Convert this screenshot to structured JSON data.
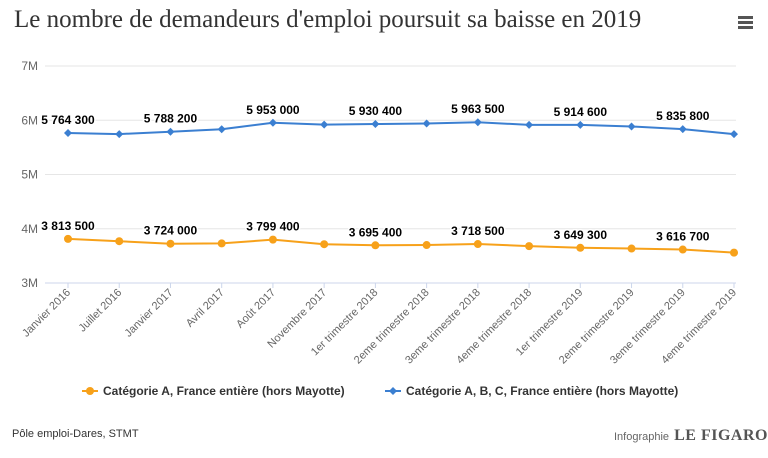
{
  "header": {
    "title": "Le nombre de demandeurs d'emploi poursuit sa baisse en 2019",
    "menu_icon": "hamburger-menu-icon"
  },
  "footer": {
    "source": "Pôle emploi-Dares, STMT",
    "infographie_label": "Infographie",
    "brand": "LE FIGARO"
  },
  "chart_data": {
    "type": "line",
    "title": "Le nombre de demandeurs d'emploi poursuit sa baisse en 2019",
    "xlabel": "",
    "ylabel": "",
    "ylim": [
      3000000,
      7000000
    ],
    "yticks": [
      3000000,
      4000000,
      5000000,
      6000000,
      7000000
    ],
    "ytick_labels": [
      "3M",
      "4M",
      "5M",
      "6M",
      "7M"
    ],
    "grid": true,
    "legend_position": "bottom",
    "categories": [
      "Janvier 2016",
      "Juillet 2016",
      "Janvier 2017",
      "Avril 2017",
      "Août 2017",
      "Novembre 2017",
      "1er trimestre 2018",
      "2eme trimestre 2018",
      "3eme trimestre 2018",
      "4eme trimestre 2018",
      "1er trimestre 2019",
      "2eme trimestre 2019",
      "3eme trimestre 2019",
      "4eme trimestre 2019"
    ],
    "series": [
      {
        "name": "Catégorie A, France entière (hors Mayotte)",
        "color": "#f7a11a",
        "marker": "circle",
        "values": [
          3813500,
          3770000,
          3724000,
          3730000,
          3799400,
          3715000,
          3695400,
          3700000,
          3718500,
          3680000,
          3649300,
          3635000,
          3616700,
          3560000
        ],
        "labels": [
          "3 813 500",
          "",
          "3 724 000",
          "",
          "3 799 400",
          "",
          "3 695 400",
          "",
          "3 718 500",
          "",
          "3 649 300",
          "",
          "3 616 700",
          ""
        ]
      },
      {
        "name": "Catégorie A, B, C, France entière (hors Mayotte)",
        "color": "#3b7fd1",
        "marker": "diamond",
        "values": [
          5764300,
          5745000,
          5788200,
          5835000,
          5953000,
          5920000,
          5930400,
          5940000,
          5963500,
          5915000,
          5914600,
          5885000,
          5835800,
          5745000
        ],
        "labels": [
          "5 764 300",
          "",
          "5 788 200",
          "",
          "5 953 000",
          "",
          "5 930 400",
          "",
          "5 963 500",
          "",
          "5 914 600",
          "",
          "5 835 800",
          ""
        ]
      }
    ]
  }
}
